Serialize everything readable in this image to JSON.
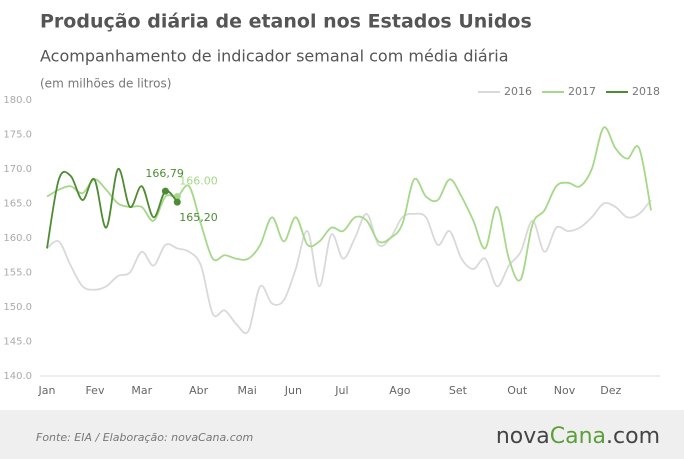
{
  "chart_data": {
    "type": "line",
    "title": "Produção diária de etanol nos Estados Unidos",
    "subtitle": "Acompanhamento de indicador semanal com média diária",
    "unit_note": "(em milhões de litros)",
    "source": "Fonte:  EIA / Elaboração:  novaCana.com",
    "brand": [
      "nova",
      "Cana",
      ".com"
    ],
    "x": [
      1,
      2,
      3,
      4,
      5,
      6,
      7,
      8,
      9,
      10,
      11,
      12,
      13,
      14,
      15,
      16,
      17,
      18,
      19,
      20,
      21,
      22,
      23,
      24,
      25,
      26,
      27,
      28,
      29,
      30,
      31,
      32,
      33,
      34,
      35,
      36,
      37,
      38,
      39,
      40,
      41,
      42,
      43,
      44,
      45,
      46,
      47,
      48,
      49,
      50,
      51,
      52
    ],
    "xlim": [
      1,
      52
    ],
    "xticks": [
      {
        "value": 1,
        "label": "Jan"
      },
      {
        "value": 5.05,
        "label": "Fev"
      },
      {
        "value": 9,
        "label": "Mar"
      },
      {
        "value": 13.8,
        "label": "Abr"
      },
      {
        "value": 17.9,
        "label": "Mai"
      },
      {
        "value": 21.8,
        "label": "Jun"
      },
      {
        "value": 25.9,
        "label": "Jul"
      },
      {
        "value": 30.8,
        "label": "Ago"
      },
      {
        "value": 35.7,
        "label": "Set"
      },
      {
        "value": 40.7,
        "label": "Out"
      },
      {
        "value": 44.7,
        "label": "Nov"
      },
      {
        "value": 48.6,
        "label": "Dez"
      }
    ],
    "ylim": [
      140,
      180
    ],
    "yticks": [
      {
        "value": 140,
        "label": "140.0"
      },
      {
        "value": 145,
        "label": "145.0"
      },
      {
        "value": 150,
        "label": "150.0"
      },
      {
        "value": 155,
        "label": "155.0"
      },
      {
        "value": 160,
        "label": "160.0"
      },
      {
        "value": 165,
        "label": "165.0"
      },
      {
        "value": 170,
        "label": "170.0"
      },
      {
        "value": 175,
        "label": "175.0"
      },
      {
        "value": 180,
        "label": "180.0"
      }
    ],
    "series": [
      {
        "name": "2016",
        "color": "#d9d9d9",
        "values": [
          158.5,
          159.5,
          156,
          153,
          152.5,
          153,
          154.5,
          155,
          158,
          156,
          159,
          158.5,
          158,
          156,
          149,
          149.5,
          147.5,
          146.5,
          153,
          150.5,
          151,
          155.5,
          161,
          153,
          160.5,
          157,
          160,
          163.5,
          159,
          160,
          163,
          163.5,
          163,
          159,
          161,
          157,
          155.5,
          157,
          153,
          156,
          158,
          162.5,
          158,
          161.5,
          161,
          161.5,
          163,
          165,
          164.5,
          163,
          163.5,
          165.5
        ]
      },
      {
        "name": "2017",
        "color": "#a6d88a",
        "values": [
          166,
          167,
          167.5,
          166.5,
          168.5,
          167,
          165,
          164.5,
          164.5,
          162.5,
          166,
          166.0,
          167.5,
          162,
          157,
          157.5,
          157,
          157,
          159,
          163,
          159.5,
          163,
          159,
          159.5,
          161.5,
          161,
          163,
          162.5,
          159.5,
          160,
          162,
          168.5,
          166,
          165.5,
          168.5,
          166,
          162.5,
          158.5,
          164.5,
          157,
          154,
          162,
          164,
          167.5,
          168,
          167.5,
          170,
          176,
          173,
          171.5,
          173,
          164
        ],
        "value_labels": [
          null,
          null,
          null,
          null,
          null,
          null,
          null,
          null,
          null,
          null,
          null,
          "166.00",
          null,
          null,
          null,
          null,
          null,
          null,
          null,
          null,
          null,
          null,
          null,
          null,
          null,
          null,
          null,
          null,
          null,
          null,
          null,
          null,
          null,
          null,
          null,
          null,
          null,
          null,
          null,
          null,
          null,
          null,
          null,
          null,
          null,
          null,
          null,
          null,
          null,
          null,
          null,
          null
        ]
      },
      {
        "name": "2018",
        "color": "#4e8c33",
        "values": [
          158.5,
          168.5,
          169,
          165.5,
          168.5,
          161.5,
          170,
          164.5,
          167.5,
          163,
          166.79,
          165.2,
          null,
          null,
          null,
          null,
          null,
          null,
          null,
          null,
          null,
          null,
          null,
          null,
          null,
          null,
          null,
          null,
          null,
          null,
          null,
          null,
          null,
          null,
          null,
          null,
          null,
          null,
          null,
          null,
          null,
          null,
          null,
          null,
          null,
          null,
          null,
          null,
          null,
          null,
          null,
          null
        ],
        "value_labels": [
          null,
          null,
          null,
          null,
          null,
          null,
          null,
          null,
          null,
          null,
          "166,79",
          "165,20",
          null,
          null,
          null,
          null,
          null,
          null,
          null,
          null,
          null,
          null,
          null,
          null,
          null,
          null,
          null,
          null,
          null,
          null,
          null,
          null,
          null,
          null,
          null,
          null,
          null,
          null,
          null,
          null,
          null,
          null,
          null,
          null,
          null,
          null,
          null,
          null,
          null,
          null,
          null,
          null
        ]
      }
    ],
    "legend": "top-right"
  }
}
